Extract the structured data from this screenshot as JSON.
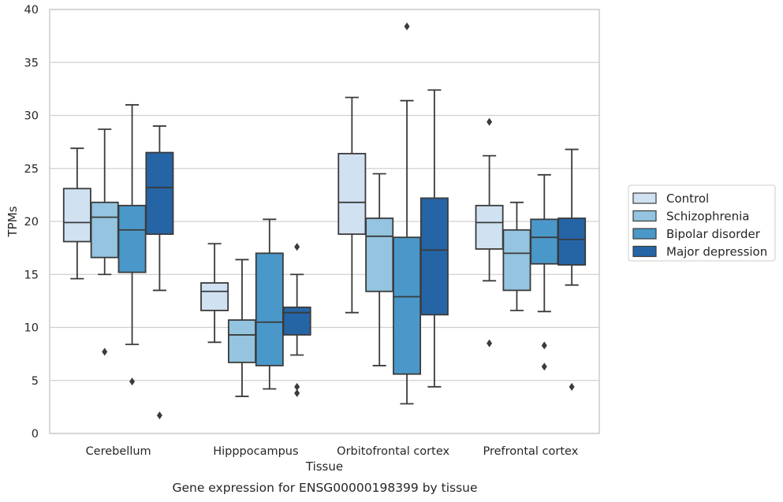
{
  "chart_data": {
    "type": "box",
    "caption": "Gene expression for ENSG00000198399 by tissue",
    "xlabel": "Tissue",
    "ylabel": "TPMs",
    "ylim": [
      0,
      40
    ],
    "yticks": [
      0,
      5,
      10,
      15,
      20,
      25,
      30,
      35,
      40
    ],
    "grid": "horizontal",
    "legend_position": "right",
    "categories": [
      "Cerebellum",
      "Hipppocampus",
      "Orbitofrontal cortex",
      "Prefrontal cortex"
    ],
    "series": [
      {
        "name": "Control",
        "color": "#d0e1f2",
        "boxes": [
          {
            "whisker_low": 14.6,
            "q1": 18.1,
            "median": 19.9,
            "q3": 23.1,
            "whisker_high": 26.9,
            "outliers": []
          },
          {
            "whisker_low": 8.6,
            "q1": 11.6,
            "median": 13.4,
            "q3": 14.2,
            "whisker_high": 17.9,
            "outliers": []
          },
          {
            "whisker_low": 11.4,
            "q1": 18.8,
            "median": 21.8,
            "q3": 26.4,
            "whisker_high": 31.7,
            "outliers": []
          },
          {
            "whisker_low": 14.4,
            "q1": 17.4,
            "median": 19.9,
            "q3": 21.5,
            "whisker_high": 26.2,
            "outliers": [
              29.4,
              8.5
            ]
          }
        ]
      },
      {
        "name": "Schizophrenia",
        "color": "#94c4df",
        "boxes": [
          {
            "whisker_low": 15.0,
            "q1": 16.6,
            "median": 20.4,
            "q3": 21.8,
            "whisker_high": 28.7,
            "outliers": [
              7.7
            ]
          },
          {
            "whisker_low": 3.5,
            "q1": 6.7,
            "median": 9.3,
            "q3": 10.7,
            "whisker_high": 16.4,
            "outliers": []
          },
          {
            "whisker_low": 6.4,
            "q1": 13.4,
            "median": 18.6,
            "q3": 20.3,
            "whisker_high": 24.5,
            "outliers": []
          },
          {
            "whisker_low": 11.6,
            "q1": 13.5,
            "median": 17.0,
            "q3": 19.2,
            "whisker_high": 21.8,
            "outliers": []
          }
        ]
      },
      {
        "name": "Bipolar disorder",
        "color": "#4a98c9",
        "boxes": [
          {
            "whisker_low": 8.4,
            "q1": 15.2,
            "median": 19.2,
            "q3": 21.5,
            "whisker_high": 31.0,
            "outliers": [
              4.9
            ]
          },
          {
            "whisker_low": 4.2,
            "q1": 6.4,
            "median": 10.5,
            "q3": 17.0,
            "whisker_high": 20.2,
            "outliers": []
          },
          {
            "whisker_low": 2.8,
            "q1": 5.6,
            "median": 12.9,
            "q3": 18.5,
            "whisker_high": 31.4,
            "outliers": [
              38.4
            ]
          },
          {
            "whisker_low": 11.5,
            "q1": 16.0,
            "median": 18.5,
            "q3": 20.2,
            "whisker_high": 24.4,
            "outliers": [
              8.3,
              6.3
            ]
          }
        ]
      },
      {
        "name": "Major depression",
        "color": "#2565a6",
        "boxes": [
          {
            "whisker_low": 13.5,
            "q1": 18.8,
            "median": 23.2,
            "q3": 26.5,
            "whisker_high": 29.0,
            "outliers": [
              1.7
            ]
          },
          {
            "whisker_low": 7.4,
            "q1": 9.3,
            "median": 11.4,
            "q3": 11.9,
            "whisker_high": 15.0,
            "outliers": [
              17.6,
              4.4,
              3.8
            ]
          },
          {
            "whisker_low": 4.4,
            "q1": 11.2,
            "median": 17.3,
            "q3": 22.2,
            "whisker_high": 32.4,
            "outliers": []
          },
          {
            "whisker_low": 14.0,
            "q1": 15.9,
            "median": 18.3,
            "q3": 20.3,
            "whisker_high": 26.8,
            "outliers": [
              4.4
            ]
          }
        ]
      }
    ]
  }
}
